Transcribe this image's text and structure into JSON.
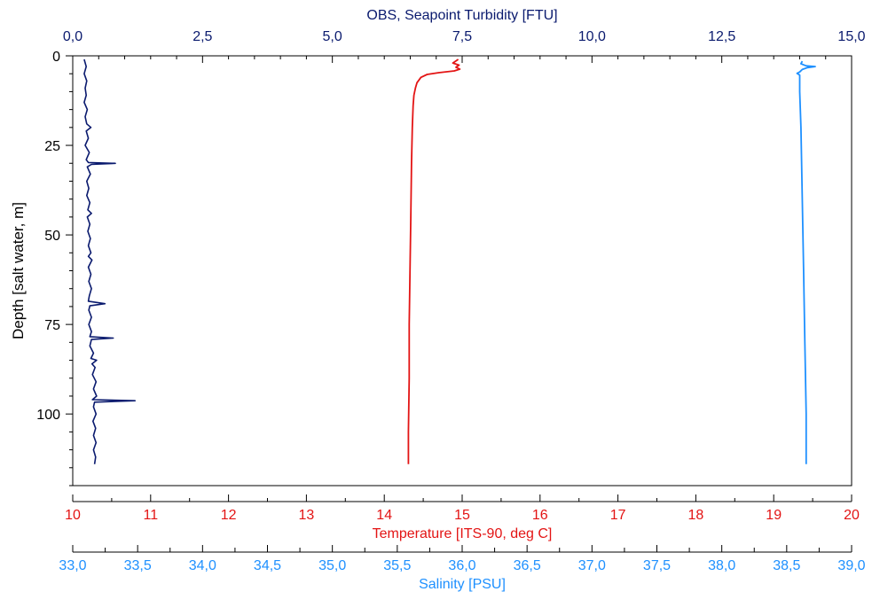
{
  "colors": {
    "turbidity": "#0a1a6e",
    "temperature": "#e31414",
    "salinity": "#1e90ff",
    "axis": "#000000"
  },
  "chart_data": {
    "type": "line",
    "orientation": "depth-profile",
    "grid": false,
    "legend": "none",
    "y_axis": {
      "label": "Depth [salt water, m]",
      "range": [
        0,
        120
      ],
      "inverted": true,
      "ticks": [
        0,
        25,
        50,
        75,
        100
      ]
    },
    "x_axes": [
      {
        "id": "turbidity",
        "label": "OBS, Seapoint Turbidity [FTU]",
        "position": "top",
        "range": [
          0,
          15
        ],
        "ticks": [
          "0,0",
          "2,5",
          "5,0",
          "7,5",
          "10,0",
          "12,5",
          "15,0"
        ],
        "color": "#0a1a6e"
      },
      {
        "id": "temperature",
        "label": "Temperature [ITS-90, deg C]",
        "position": "bottom",
        "range": [
          10,
          20
        ],
        "ticks": [
          "10",
          "11",
          "12",
          "13",
          "14",
          "15",
          "16",
          "17",
          "18",
          "19",
          "20"
        ],
        "color": "#e31414"
      },
      {
        "id": "salinity",
        "label": "Salinity [PSU]",
        "position": "bottom-offset",
        "range": [
          33,
          39
        ],
        "ticks": [
          "33,0",
          "33,5",
          "34,0",
          "34,5",
          "35,0",
          "35,5",
          "36,0",
          "36,5",
          "37,0",
          "37,5",
          "38,0",
          "38,5",
          "39,0"
        ],
        "color": "#1e90ff"
      }
    ],
    "series": [
      {
        "axis": "temperature",
        "points": [
          [
            14.95,
            1
          ],
          [
            14.88,
            2
          ],
          [
            14.96,
            2.6
          ],
          [
            14.92,
            3.2
          ],
          [
            14.97,
            3.7
          ],
          [
            14.9,
            4.2
          ],
          [
            14.7,
            4.7
          ],
          [
            14.55,
            5.2
          ],
          [
            14.47,
            6
          ],
          [
            14.42,
            7.5
          ],
          [
            14.4,
            9
          ],
          [
            14.38,
            11
          ],
          [
            14.37,
            14
          ],
          [
            14.36,
            20
          ],
          [
            14.35,
            30
          ],
          [
            14.34,
            45
          ],
          [
            14.33,
            60
          ],
          [
            14.32,
            75
          ],
          [
            14.32,
            90
          ],
          [
            14.31,
            105
          ],
          [
            14.31,
            114
          ]
        ]
      },
      {
        "axis": "salinity",
        "points": [
          [
            38.62,
            1.5
          ],
          [
            38.61,
            2.2
          ],
          [
            38.65,
            2.8
          ],
          [
            38.72,
            3
          ],
          [
            38.66,
            3.3
          ],
          [
            38.62,
            3.8
          ],
          [
            38.6,
            4.5
          ],
          [
            38.58,
            4.9
          ],
          [
            38.6,
            5.4
          ],
          [
            38.6,
            6.5
          ],
          [
            38.6,
            10
          ],
          [
            38.61,
            20
          ],
          [
            38.62,
            40
          ],
          [
            38.63,
            60
          ],
          [
            38.64,
            80
          ],
          [
            38.65,
            100
          ],
          [
            38.65,
            114
          ]
        ]
      },
      {
        "axis": "turbidity",
        "points": [
          [
            0.22,
            1
          ],
          [
            0.26,
            3
          ],
          [
            0.22,
            5
          ],
          [
            0.27,
            7
          ],
          [
            0.24,
            9
          ],
          [
            0.26,
            11
          ],
          [
            0.22,
            13
          ],
          [
            0.28,
            15
          ],
          [
            0.24,
            17
          ],
          [
            0.27,
            19
          ],
          [
            0.35,
            20
          ],
          [
            0.26,
            21
          ],
          [
            0.3,
            23
          ],
          [
            0.24,
            25
          ],
          [
            0.32,
            27
          ],
          [
            0.26,
            29
          ],
          [
            0.3,
            29.8
          ],
          [
            0.82,
            30
          ],
          [
            0.36,
            30.3
          ],
          [
            0.28,
            31
          ],
          [
            0.34,
            33
          ],
          [
            0.27,
            35
          ],
          [
            0.31,
            37
          ],
          [
            0.27,
            39
          ],
          [
            0.33,
            41
          ],
          [
            0.29,
            43
          ],
          [
            0.36,
            44
          ],
          [
            0.28,
            45
          ],
          [
            0.33,
            47
          ],
          [
            0.29,
            49
          ],
          [
            0.34,
            51
          ],
          [
            0.3,
            53
          ],
          [
            0.35,
            55
          ],
          [
            0.3,
            56
          ],
          [
            0.37,
            57
          ],
          [
            0.3,
            59
          ],
          [
            0.35,
            61
          ],
          [
            0.31,
            63
          ],
          [
            0.36,
            65
          ],
          [
            0.32,
            67
          ],
          [
            0.3,
            68.5
          ],
          [
            0.62,
            69.2
          ],
          [
            0.33,
            69.8
          ],
          [
            0.31,
            71
          ],
          [
            0.36,
            73
          ],
          [
            0.31,
            75
          ],
          [
            0.36,
            77
          ],
          [
            0.33,
            78.4
          ],
          [
            0.78,
            78.8
          ],
          [
            0.36,
            79.2
          ],
          [
            0.33,
            81
          ],
          [
            0.4,
            83
          ],
          [
            0.35,
            84.5
          ],
          [
            0.46,
            85
          ],
          [
            0.37,
            86
          ],
          [
            0.43,
            87
          ],
          [
            0.38,
            89
          ],
          [
            0.45,
            91
          ],
          [
            0.4,
            93
          ],
          [
            0.46,
            95
          ],
          [
            0.38,
            96
          ],
          [
            1.2,
            96.3
          ],
          [
            0.42,
            96.7
          ],
          [
            0.4,
            98
          ],
          [
            0.45,
            100
          ],
          [
            0.39,
            102
          ],
          [
            0.44,
            104
          ],
          [
            0.4,
            106
          ],
          [
            0.45,
            108
          ],
          [
            0.4,
            110
          ],
          [
            0.44,
            112
          ],
          [
            0.42,
            114
          ]
        ]
      }
    ]
  }
}
